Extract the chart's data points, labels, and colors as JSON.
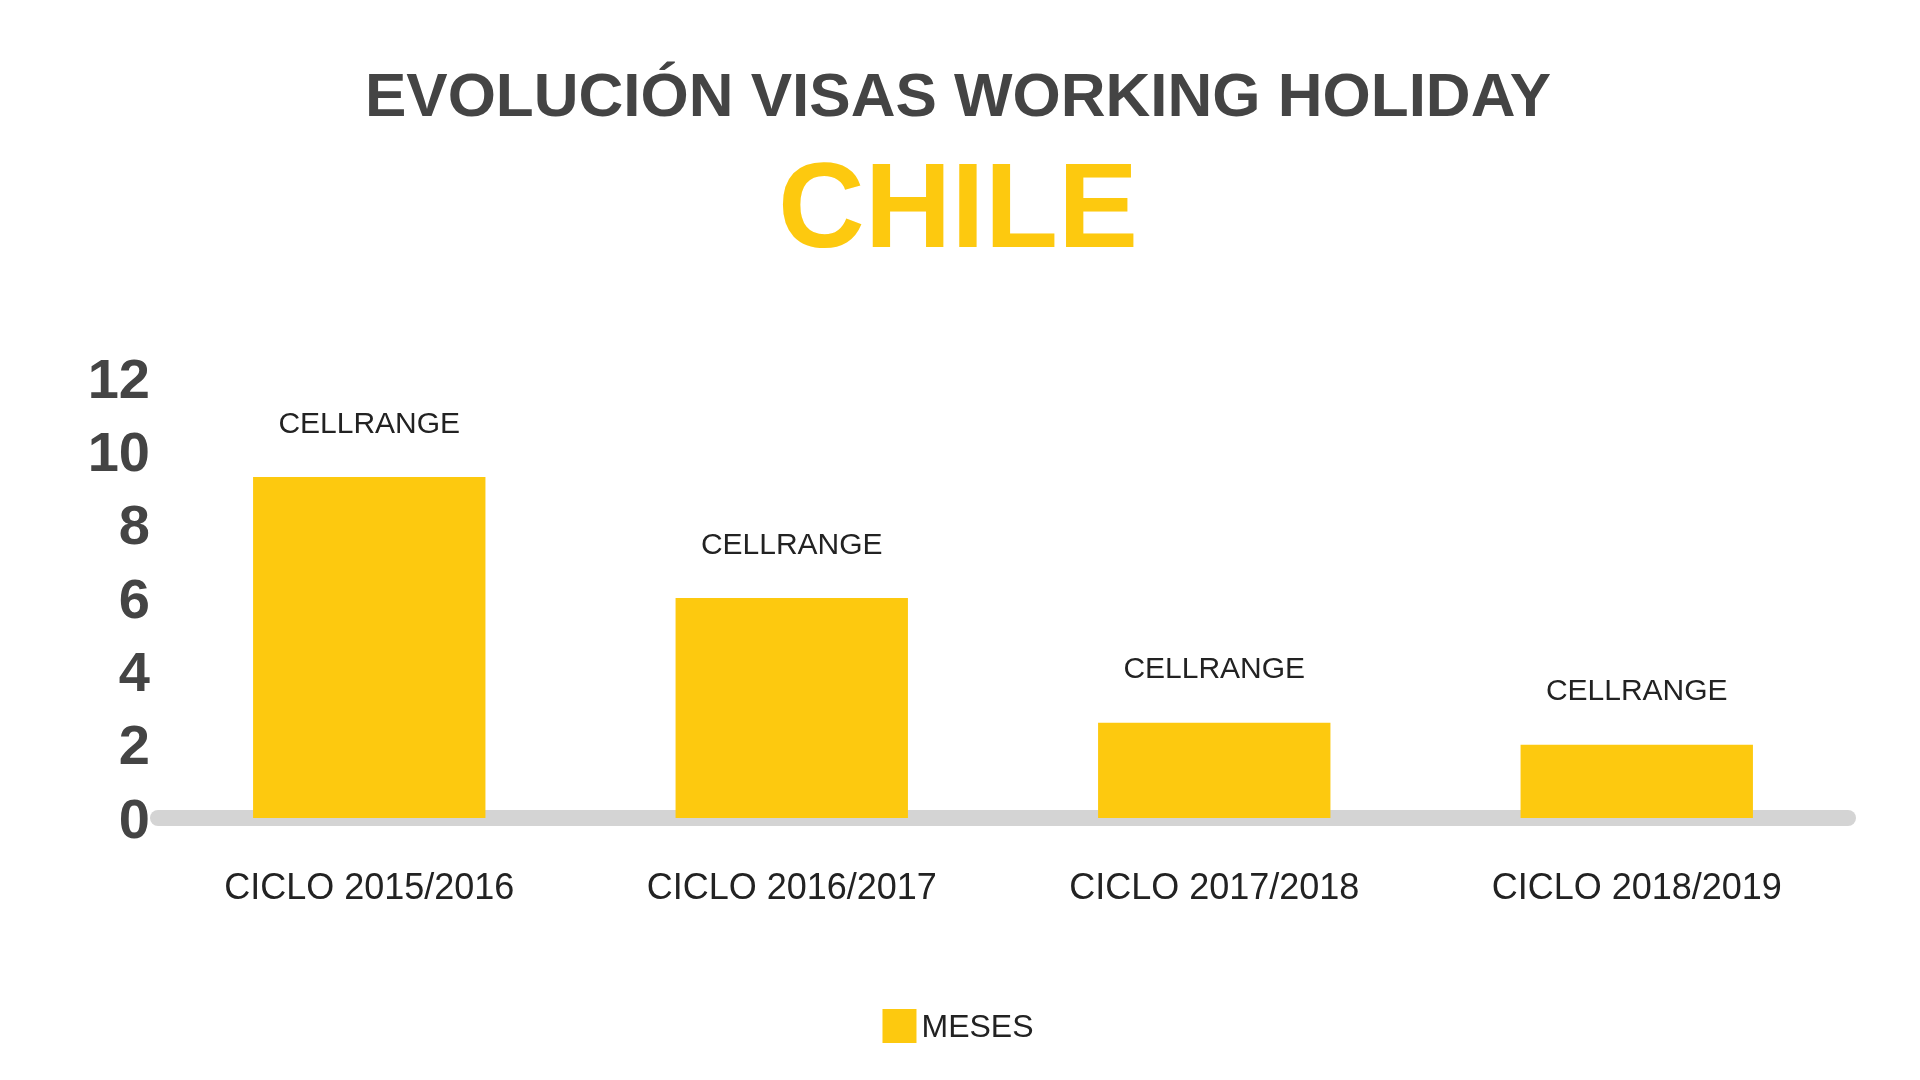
{
  "chart_data": {
    "type": "bar",
    "title": "EVOLUCIÓN VISAS WORKING HOLIDAY",
    "subtitle": "CHILE",
    "categories": [
      "CICLO 2015/2016",
      "CICLO 2016/2017",
      "CICLO 2017/2018",
      "CICLO 2018/2019"
    ],
    "series": [
      {
        "name": "MESES",
        "color": "#fdc90f",
        "values": [
          9.3,
          6,
          2.6,
          2
        ]
      }
    ],
    "value_labels": [
      "CELLRANGE",
      "CELLRANGE",
      "CELLRANGE",
      "CELLRANGE"
    ],
    "ylim": [
      0,
      12
    ],
    "yticks": [
      0,
      2,
      4,
      6,
      8,
      10,
      12
    ],
    "grid": false,
    "legend": "bottom"
  }
}
